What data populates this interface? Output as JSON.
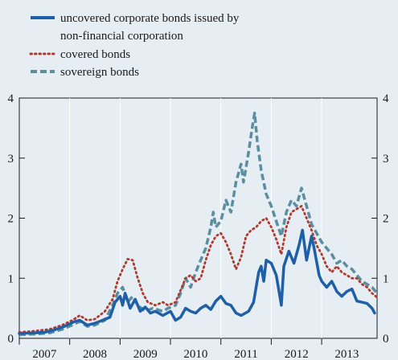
{
  "chart_data": {
    "type": "line",
    "title": "",
    "xlabel": "",
    "ylabel": "",
    "x_ticks": [
      "2007",
      "2008",
      "2009",
      "2010",
      "2011",
      "2012",
      "2013"
    ],
    "x_range": [
      2007.0,
      2014.1
    ],
    "ylim": [
      0,
      4
    ],
    "y_ticks": [
      "0",
      "1",
      "2",
      "3",
      "4"
    ],
    "grid": "vertical",
    "legend_position": "top-left",
    "series": [
      {
        "name": "uncovered corporate bonds issued by non-financial corporation",
        "color": "#1f5fa8",
        "style": "solid",
        "points": [
          [
            2007.0,
            0.08
          ],
          [
            2007.3,
            0.09
          ],
          [
            2007.5,
            0.1
          ],
          [
            2007.7,
            0.14
          ],
          [
            2007.9,
            0.2
          ],
          [
            2008.1,
            0.28
          ],
          [
            2008.2,
            0.3
          ],
          [
            2008.35,
            0.22
          ],
          [
            2008.5,
            0.25
          ],
          [
            2008.65,
            0.3
          ],
          [
            2008.8,
            0.35
          ],
          [
            2008.9,
            0.6
          ],
          [
            2009.0,
            0.7
          ],
          [
            2009.05,
            0.55
          ],
          [
            2009.1,
            0.75
          ],
          [
            2009.2,
            0.5
          ],
          [
            2009.3,
            0.65
          ],
          [
            2009.4,
            0.45
          ],
          [
            2009.5,
            0.52
          ],
          [
            2009.6,
            0.42
          ],
          [
            2009.7,
            0.45
          ],
          [
            2009.85,
            0.38
          ],
          [
            2010.0,
            0.45
          ],
          [
            2010.1,
            0.3
          ],
          [
            2010.2,
            0.35
          ],
          [
            2010.3,
            0.5
          ],
          [
            2010.4,
            0.45
          ],
          [
            2010.5,
            0.42
          ],
          [
            2010.6,
            0.5
          ],
          [
            2010.7,
            0.55
          ],
          [
            2010.8,
            0.48
          ],
          [
            2010.9,
            0.62
          ],
          [
            2011.0,
            0.7
          ],
          [
            2011.1,
            0.58
          ],
          [
            2011.2,
            0.55
          ],
          [
            2011.3,
            0.42
          ],
          [
            2011.4,
            0.38
          ],
          [
            2011.55,
            0.45
          ],
          [
            2011.65,
            0.6
          ],
          [
            2011.75,
            1.1
          ],
          [
            2011.8,
            1.2
          ],
          [
            2011.85,
            0.95
          ],
          [
            2011.9,
            1.3
          ],
          [
            2012.0,
            1.25
          ],
          [
            2012.1,
            1.05
          ],
          [
            2012.15,
            0.8
          ],
          [
            2012.2,
            0.55
          ],
          [
            2012.25,
            1.2
          ],
          [
            2012.35,
            1.45
          ],
          [
            2012.45,
            1.25
          ],
          [
            2012.55,
            1.55
          ],
          [
            2012.62,
            1.8
          ],
          [
            2012.7,
            1.3
          ],
          [
            2012.8,
            1.7
          ],
          [
            2012.85,
            1.5
          ],
          [
            2012.95,
            1.05
          ],
          [
            2013.0,
            0.95
          ],
          [
            2013.1,
            0.85
          ],
          [
            2013.2,
            0.95
          ],
          [
            2013.3,
            0.78
          ],
          [
            2013.4,
            0.7
          ],
          [
            2013.5,
            0.78
          ],
          [
            2013.6,
            0.82
          ],
          [
            2013.7,
            0.62
          ],
          [
            2013.8,
            0.6
          ],
          [
            2013.9,
            0.58
          ],
          [
            2014.0,
            0.5
          ],
          [
            2014.05,
            0.42
          ]
        ]
      },
      {
        "name": "covered bonds",
        "color": "#b03a2e",
        "style": "dotted",
        "points": [
          [
            2007.0,
            0.1
          ],
          [
            2007.3,
            0.12
          ],
          [
            2007.6,
            0.15
          ],
          [
            2007.85,
            0.22
          ],
          [
            2008.05,
            0.3
          ],
          [
            2008.2,
            0.38
          ],
          [
            2008.35,
            0.3
          ],
          [
            2008.5,
            0.32
          ],
          [
            2008.7,
            0.45
          ],
          [
            2008.85,
            0.65
          ],
          [
            2008.95,
            0.95
          ],
          [
            2009.05,
            1.15
          ],
          [
            2009.15,
            1.32
          ],
          [
            2009.25,
            1.3
          ],
          [
            2009.35,
            1.0
          ],
          [
            2009.45,
            0.75
          ],
          [
            2009.55,
            0.6
          ],
          [
            2009.7,
            0.55
          ],
          [
            2009.85,
            0.6
          ],
          [
            2009.95,
            0.55
          ],
          [
            2010.1,
            0.6
          ],
          [
            2010.2,
            0.8
          ],
          [
            2010.3,
            1.0
          ],
          [
            2010.4,
            1.05
          ],
          [
            2010.5,
            0.95
          ],
          [
            2010.6,
            1.0
          ],
          [
            2010.7,
            1.3
          ],
          [
            2010.8,
            1.55
          ],
          [
            2010.9,
            1.7
          ],
          [
            2011.0,
            1.75
          ],
          [
            2011.1,
            1.6
          ],
          [
            2011.2,
            1.4
          ],
          [
            2011.3,
            1.15
          ],
          [
            2011.4,
            1.35
          ],
          [
            2011.5,
            1.7
          ],
          [
            2011.6,
            1.8
          ],
          [
            2011.7,
            1.85
          ],
          [
            2011.8,
            1.95
          ],
          [
            2011.9,
            2.0
          ],
          [
            2012.0,
            1.85
          ],
          [
            2012.1,
            1.65
          ],
          [
            2012.2,
            1.4
          ],
          [
            2012.3,
            1.85
          ],
          [
            2012.4,
            2.1
          ],
          [
            2012.5,
            2.15
          ],
          [
            2012.6,
            2.2
          ],
          [
            2012.7,
            2.0
          ],
          [
            2012.8,
            1.8
          ],
          [
            2012.9,
            1.55
          ],
          [
            2013.0,
            1.4
          ],
          [
            2013.1,
            1.2
          ],
          [
            2013.2,
            1.1
          ],
          [
            2013.3,
            1.2
          ],
          [
            2013.4,
            1.1
          ],
          [
            2013.5,
            1.05
          ],
          [
            2013.6,
            1.0
          ],
          [
            2013.7,
            1.0
          ],
          [
            2013.8,
            0.9
          ],
          [
            2013.9,
            0.85
          ],
          [
            2014.0,
            0.75
          ],
          [
            2014.1,
            0.68
          ]
        ]
      },
      {
        "name": "sovereign bonds",
        "color": "#5b8fa0",
        "style": "dashed",
        "points": [
          [
            2007.0,
            0.06
          ],
          [
            2007.3,
            0.07
          ],
          [
            2007.6,
            0.09
          ],
          [
            2007.85,
            0.15
          ],
          [
            2008.05,
            0.22
          ],
          [
            2008.2,
            0.28
          ],
          [
            2008.35,
            0.2
          ],
          [
            2008.5,
            0.22
          ],
          [
            2008.7,
            0.3
          ],
          [
            2008.85,
            0.55
          ],
          [
            2008.95,
            0.75
          ],
          [
            2009.05,
            0.85
          ],
          [
            2009.15,
            0.6
          ],
          [
            2009.25,
            0.7
          ],
          [
            2009.35,
            0.55
          ],
          [
            2009.5,
            0.45
          ],
          [
            2009.65,
            0.5
          ],
          [
            2009.85,
            0.45
          ],
          [
            2009.95,
            0.5
          ],
          [
            2010.1,
            0.55
          ],
          [
            2010.2,
            0.75
          ],
          [
            2010.3,
            1.0
          ],
          [
            2010.4,
            0.85
          ],
          [
            2010.5,
            1.1
          ],
          [
            2010.6,
            1.3
          ],
          [
            2010.7,
            1.5
          ],
          [
            2010.8,
            1.85
          ],
          [
            2010.85,
            2.1
          ],
          [
            2010.9,
            1.85
          ],
          [
            2011.0,
            1.95
          ],
          [
            2011.1,
            2.3
          ],
          [
            2011.2,
            2.1
          ],
          [
            2011.3,
            2.6
          ],
          [
            2011.4,
            2.9
          ],
          [
            2011.45,
            2.6
          ],
          [
            2011.55,
            3.1
          ],
          [
            2011.62,
            3.5
          ],
          [
            2011.67,
            3.75
          ],
          [
            2011.72,
            3.3
          ],
          [
            2011.8,
            2.8
          ],
          [
            2011.9,
            2.4
          ],
          [
            2012.0,
            2.2
          ],
          [
            2012.1,
            1.95
          ],
          [
            2012.2,
            1.7
          ],
          [
            2012.3,
            2.1
          ],
          [
            2012.4,
            2.3
          ],
          [
            2012.5,
            2.2
          ],
          [
            2012.6,
            2.5
          ],
          [
            2012.7,
            2.2
          ],
          [
            2012.8,
            1.9
          ],
          [
            2012.9,
            1.75
          ],
          [
            2013.0,
            1.6
          ],
          [
            2013.1,
            1.5
          ],
          [
            2013.2,
            1.4
          ],
          [
            2013.3,
            1.25
          ],
          [
            2013.4,
            1.3
          ],
          [
            2013.5,
            1.2
          ],
          [
            2013.6,
            1.15
          ],
          [
            2013.7,
            1.05
          ],
          [
            2013.8,
            0.95
          ],
          [
            2013.9,
            0.9
          ],
          [
            2014.0,
            0.85
          ],
          [
            2014.1,
            0.75
          ]
        ]
      }
    ]
  }
}
